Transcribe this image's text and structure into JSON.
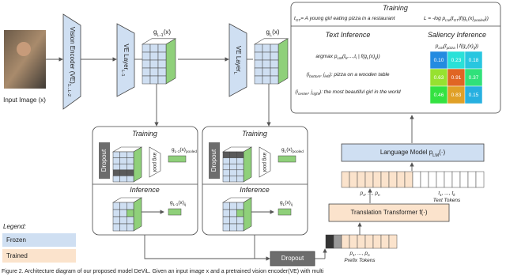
{
  "input_image": {
    "label": "Input Image (x)"
  },
  "encoder": {
    "vision_encoder": "Vision Encoder (VE)_{1...L-2}",
    "layer_l1": "VE Layer_{L-1}",
    "layer_l": "VE Layer_{L}",
    "feature_l1": "g_{L-1}(x)",
    "feature_l": "g_{L}(x)"
  },
  "results": {
    "training": {
      "title": "Training",
      "target": "t_{GT}= A young girl eating pizza in a restaurant",
      "loss": "L = -log p_{LM}(t_{GT}|f(g_{L}(x)_{pooled}))"
    },
    "text_inference": {
      "title": "Text Inference",
      "formula": "argmax p_{LM}(t_{k},...,t_{l} | f(g_{L}(x)_{ij}))",
      "lines": [
        "(i_{bottom}, j_{left}): pizza on a wooden table",
        "(i_{center}, j_{right}): the most beautiful girl in the world"
      ]
    },
    "saliency_inference": {
      "title": "Saliency Inference",
      "formula": "p_{LM}(t_{pizza} | f(g_{L}(x)_{ij}))",
      "cells": [
        [
          "0.10",
          "0.23",
          "0.18"
        ],
        [
          "0.63",
          "0.91",
          "0.37"
        ],
        [
          "0.46",
          "0.83",
          "0.15"
        ]
      ]
    }
  },
  "panels": [
    {
      "training": "Training",
      "dropout": "Dropout",
      "pool": "avg pool",
      "pooled": "g_{L-1}(x)_{pooled}",
      "inference": "Inference",
      "patch": "g_{L-1}(x)_{ij}"
    },
    {
      "training": "Training",
      "dropout": "Dropout",
      "pool": "avg pool",
      "pooled": "g_{L}(x)_{pooled}",
      "inference": "Inference",
      "patch": "g_{L}(x)_{ij}"
    }
  ],
  "language_model": "Language Model p_{LM}(·)",
  "token_row": {
    "prefix": "p_{1}, ..., p_{n}",
    "text": "t_{1}, ..., t_{k}",
    "text_label": "Text Tokens"
  },
  "translation": "Translation Transformer f(·)",
  "prefix_row": {
    "tokens": "p_{1}, ..., p_{n}",
    "label": "Prefix Tokens"
  },
  "dropout": "Dropout",
  "legend": {
    "title": "Legend:",
    "frozen": "Frozen",
    "trained": "Trained"
  },
  "caption": "Figure 2. Architecture diagram of our proposed model DeViL. Given an input image x and a pretrained vision encoder(VE) with multi"
}
